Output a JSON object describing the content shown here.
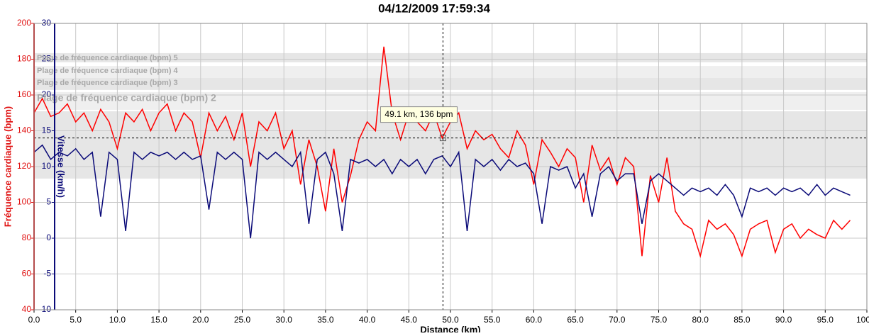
{
  "chart_data": {
    "type": "line",
    "title": "04/12/2009 17:59:34",
    "xlabel": "Distance (km)",
    "ylabel": "Fréquence cardiaque (bpm)",
    "y2label": "Vitesse (km/h)",
    "xlim": [
      0,
      100
    ],
    "xticks": [
      {
        "value": 0,
        "label": "0.0"
      },
      {
        "value": 5,
        "label": "5.0"
      },
      {
        "value": 10,
        "label": "10.0"
      },
      {
        "value": 15,
        "label": "15.0"
      },
      {
        "value": 20,
        "label": "20.0"
      },
      {
        "value": 25,
        "label": "25.0"
      },
      {
        "value": 30,
        "label": "30.0"
      },
      {
        "value": 35,
        "label": "35.0"
      },
      {
        "value": 40,
        "label": "40.0"
      },
      {
        "value": 45,
        "label": "45.0"
      },
      {
        "value": 50,
        "label": "50.0"
      },
      {
        "value": 55,
        "label": "55.0"
      },
      {
        "value": 60,
        "label": "60.0"
      },
      {
        "value": 65,
        "label": "65.0"
      },
      {
        "value": 70,
        "label": "70.0"
      },
      {
        "value": 75,
        "label": "75.0"
      },
      {
        "value": 80,
        "label": "80.0"
      },
      {
        "value": 85,
        "label": "85.0"
      },
      {
        "value": 90,
        "label": "90.0"
      },
      {
        "value": 95,
        "label": "95.0"
      },
      {
        "value": 100,
        "label": "100.0"
      }
    ],
    "ylim": [
      40,
      200
    ],
    "yticks": [
      40,
      60,
      80,
      100,
      120,
      140,
      160,
      180,
      200
    ],
    "y2lim": [
      -10,
      30
    ],
    "y2ticks": [
      -10,
      -5,
      0,
      5,
      10,
      15,
      20,
      25,
      30
    ],
    "ycolor": "#e01010",
    "y2color": "#0a0a78",
    "grid": true,
    "zones": [
      {
        "name": "Plage de fréquence cardiaque (bpm) 5",
        "from": 178.3,
        "to": 183.4,
        "color": "#e6e6e6"
      },
      {
        "name": "Plage de fréquence cardiaque (bpm) 4",
        "from": 169.5,
        "to": 176.2,
        "color": "#efefef"
      },
      {
        "name": "Plage de fréquence cardiaque (bpm) 3",
        "from": 162.8,
        "to": 169.5,
        "color": "#e6e6e6"
      },
      {
        "name": "Plage de fréquence cardiaque (bpm) 2",
        "from": 151.7,
        "to": 161.6,
        "color": "#efefef"
      },
      {
        "from": 113.3,
        "to": 150.9,
        "color": "#e6e6e6"
      }
    ],
    "cursor": {
      "x": 49.1,
      "y": 136,
      "label": "49.1 km, 136 bpm"
    },
    "x": [
      0,
      1,
      2,
      3,
      4,
      5,
      6,
      7,
      8,
      9,
      10,
      11,
      12,
      13,
      14,
      15,
      16,
      17,
      18,
      19,
      20,
      21,
      22,
      23,
      24,
      25,
      26,
      27,
      28,
      29,
      30,
      31,
      32,
      33,
      34,
      35,
      36,
      37,
      38,
      39,
      40,
      41,
      42,
      43,
      44,
      45,
      46,
      47,
      48,
      49,
      50,
      51,
      52,
      53,
      54,
      55,
      56,
      57,
      58,
      59,
      60,
      61,
      62,
      63,
      64,
      65,
      66,
      67,
      68,
      69,
      70,
      71,
      72,
      73,
      74,
      75,
      76,
      77,
      78,
      79,
      80,
      81,
      82,
      83,
      84,
      85,
      86,
      87,
      88,
      89,
      90,
      91,
      92,
      93,
      94,
      95,
      96,
      97,
      98
    ],
    "series": [
      {
        "color": "#ff0000",
        "values": [
          150,
          158,
          148,
          150,
          155,
          145,
          150,
          140,
          152,
          145,
          130,
          150,
          145,
          152,
          140,
          150,
          155,
          140,
          150,
          145,
          125,
          150,
          140,
          148,
          135,
          150,
          120,
          145,
          140,
          150,
          130,
          140,
          110,
          135,
          120,
          95,
          130,
          100,
          115,
          135,
          145,
          140,
          187,
          150,
          135,
          150,
          145,
          140,
          150,
          136,
          145,
          150,
          130,
          140,
          135,
          138,
          130,
          125,
          140,
          132,
          110,
          135,
          128,
          120,
          130,
          125,
          100,
          132,
          118,
          125,
          110,
          125,
          120,
          70,
          115,
          100,
          125,
          95,
          88,
          85,
          70,
          90,
          85,
          88,
          82,
          70,
          85,
          88,
          90,
          72,
          85,
          88,
          80,
          85,
          82,
          80,
          90,
          85,
          90
        ]
      },
      {
        "color": "#0a0a78",
        "axis": "y2",
        "values": [
          12,
          13,
          11,
          12,
          11.5,
          12.5,
          11,
          12,
          3,
          12,
          11,
          1,
          12,
          11,
          12,
          11.5,
          12,
          11,
          12,
          11,
          11.5,
          4,
          12,
          11,
          12,
          11,
          0,
          12,
          11,
          12,
          11,
          10,
          12,
          2,
          11,
          12,
          9,
          1,
          11,
          10.5,
          11,
          10,
          11,
          9,
          11,
          10,
          11,
          9,
          11,
          11.5,
          10,
          12,
          1,
          11,
          10,
          11,
          9.5,
          11,
          10,
          10.5,
          9,
          2,
          10,
          9.5,
          10,
          7,
          9,
          3,
          9,
          10,
          8,
          9,
          9,
          2,
          8,
          9,
          8,
          7,
          6,
          7,
          6.5,
          7,
          6,
          7.5,
          6,
          3,
          7,
          6.5,
          7,
          6,
          7,
          6.5,
          7,
          6,
          7.5,
          6,
          7,
          6.5,
          6
        ]
      }
    ]
  }
}
